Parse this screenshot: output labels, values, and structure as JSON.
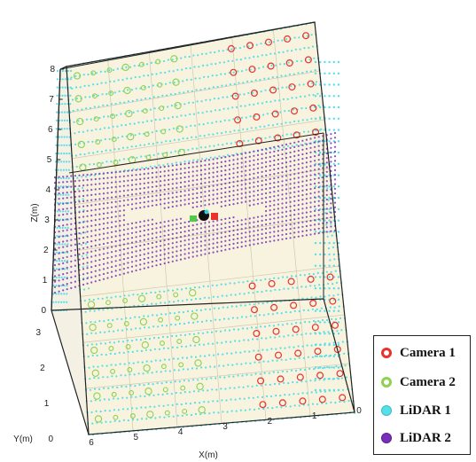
{
  "chart_data": {
    "type": "scatter",
    "title": "",
    "projection": "3d",
    "x_axis": {
      "label": "X(m)",
      "range": [
        0,
        6
      ],
      "ticks": [
        "6",
        "5",
        "4",
        "3",
        "2",
        "1",
        "0"
      ]
    },
    "y_axis": {
      "label": "Y(m)",
      "range": [
        0,
        3
      ],
      "ticks": [
        "3",
        "2",
        "1",
        "0"
      ]
    },
    "z_axis": {
      "label": "Z(m)",
      "range": [
        0,
        8
      ],
      "ticks": [
        "0",
        "1",
        "2",
        "3",
        "4",
        "5",
        "6",
        "7",
        "8"
      ]
    },
    "grid": true,
    "legend_position": "bottom-right",
    "series": [
      {
        "name": "Camera 1",
        "marker": "ring",
        "color": "#e8322b"
      },
      {
        "name": "Camera 2",
        "marker": "ring",
        "color": "#8fd14f"
      },
      {
        "name": "LiDAR 1",
        "marker": "filled-circle",
        "color": "#55dfe8"
      },
      {
        "name": "LiDAR 2",
        "marker": "filled-circle",
        "color": "#7a2fb8"
      }
    ],
    "colors": {
      "floor": "#f7f3df",
      "box_edge": "#222222",
      "legend_border": "#222222"
    }
  }
}
